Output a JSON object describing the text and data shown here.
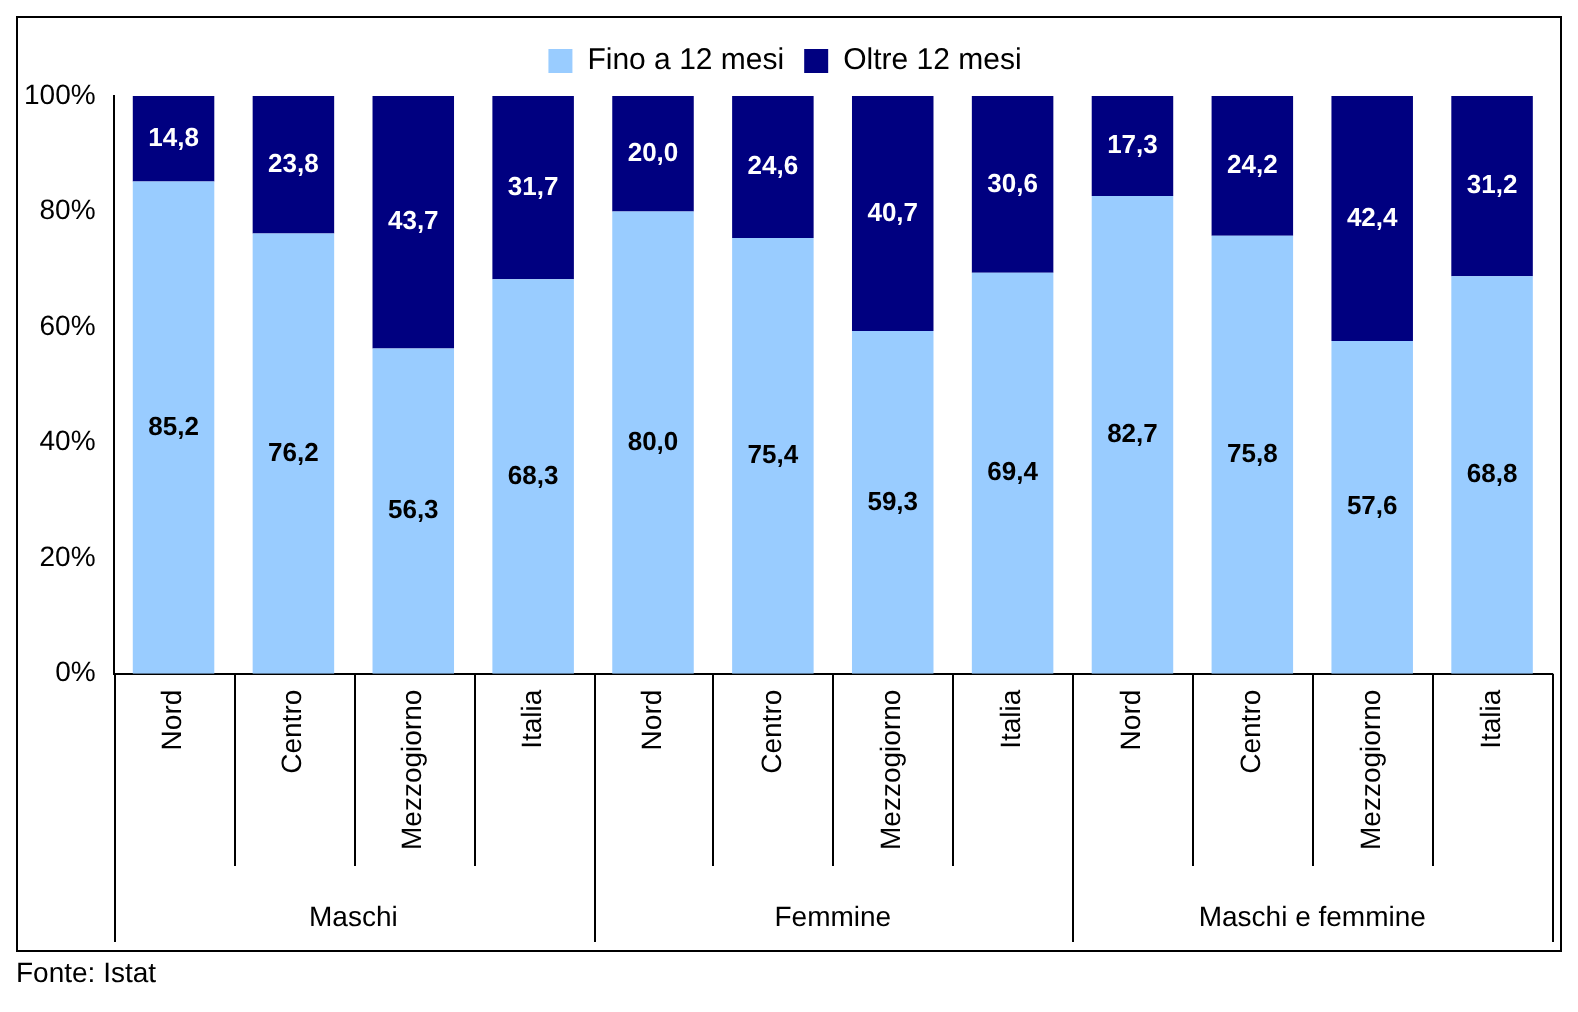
{
  "chart_data": {
    "type": "bar",
    "stacked": true,
    "categories": [
      "Nord",
      "Centro",
      "Mezzogiorno",
      "Italia",
      "Nord",
      "Centro",
      "Mezzogiorno",
      "Italia",
      "Nord",
      "Centro",
      "Mezzogiorno",
      "Italia"
    ],
    "series": [
      {
        "name": "Fino a 12 mesi",
        "color": "#99ccff",
        "values": [
          85.2,
          76.2,
          56.3,
          68.3,
          80.0,
          75.4,
          59.3,
          69.4,
          82.7,
          75.8,
          57.6,
          68.8
        ],
        "value_labels": [
          "85,2",
          "76,2",
          "56,3",
          "68,3",
          "80,0",
          "75,4",
          "59,3",
          "69,4",
          "82,7",
          "75,8",
          "57,6",
          "68,8"
        ]
      },
      {
        "name": "Oltre 12 mesi",
        "color": "#000080",
        "values": [
          14.8,
          23.8,
          43.7,
          31.7,
          20.0,
          24.6,
          40.7,
          30.6,
          17.3,
          24.2,
          42.4,
          31.2
        ],
        "value_labels": [
          "14,8",
          "23,8",
          "43,7",
          "31,7",
          "20,0",
          "24,6",
          "40,7",
          "30,6",
          "17,3",
          "24,2",
          "42,4",
          "31,2"
        ]
      }
    ],
    "ylim": [
      0,
      100
    ],
    "yticks": [
      {
        "value": 0,
        "label": "0%"
      },
      {
        "value": 20,
        "label": "20%"
      },
      {
        "value": 40,
        "label": "40%"
      },
      {
        "value": 60,
        "label": "60%"
      },
      {
        "value": 80,
        "label": "80%"
      },
      {
        "value": 100,
        "label": "100%"
      }
    ],
    "grid": false,
    "legend": "top",
    "annotations": [
      "Maschi",
      "Femmine",
      "Maschi e femmine",
      "Fonte: Istat"
    ]
  }
}
